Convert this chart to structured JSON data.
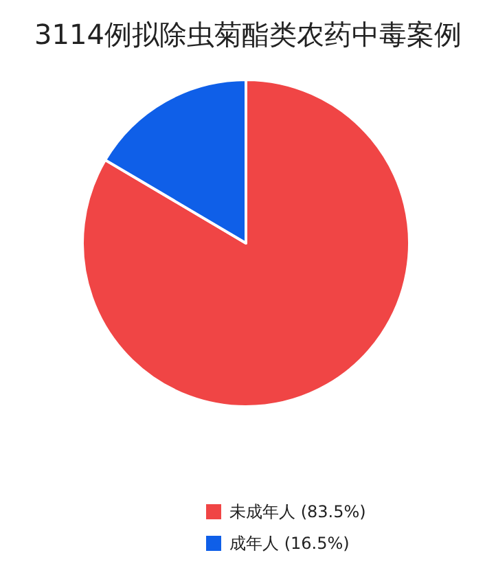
{
  "chart_data": {
    "type": "pie",
    "title": "3114例拟除虫菊酯类农药中毒案例",
    "categories": [
      "未成年人 (83.5%)",
      "成年人 (16.5%)"
    ],
    "values": [
      83.5,
      16.5
    ],
    "colors": [
      "#f04545",
      "#0f5fe8"
    ],
    "legend": "bottom"
  }
}
